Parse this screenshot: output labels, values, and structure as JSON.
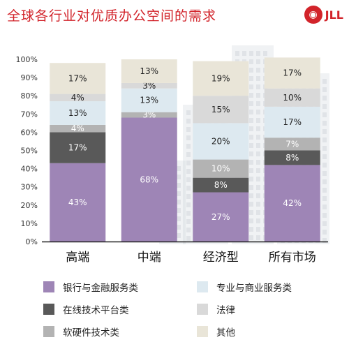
{
  "title": "全球各行业对优质办公空间的需求",
  "logo_text": "JLL",
  "colors": {
    "title": "#d2232a",
    "logo": "#d2232a",
    "banking": "#9e85b6",
    "platform": "#595959",
    "software": "#b3b3b3",
    "professional": "#dde9f0",
    "legal": "#d9d9d9",
    "other": "#e9e5d8",
    "label_light": "#ffffff",
    "label_dark": "#222222"
  },
  "chart_data": {
    "type": "bar",
    "stacked": true,
    "title": "全球各行业对优质办公空间的需求",
    "categories": [
      "高端",
      "中端",
      "经济型",
      "所有市场"
    ],
    "ylim": [
      0,
      100
    ],
    "yticks": [
      "0%",
      "10%",
      "20%",
      "30%",
      "40%",
      "50%",
      "60%",
      "70%",
      "80%",
      "90%",
      "100%"
    ],
    "ytick_values": [
      0,
      10,
      20,
      30,
      40,
      50,
      60,
      70,
      80,
      90,
      100
    ],
    "legend_position": "bottom",
    "series": [
      {
        "name": "银行与金融服务类",
        "color_key": "banking",
        "labels_light": true,
        "values": [
          43,
          68,
          27,
          42
        ],
        "labels": [
          "43%",
          "68%",
          "27%",
          "42%"
        ]
      },
      {
        "name": "在线技术平台类",
        "color_key": "platform",
        "labels_light": true,
        "values": [
          17,
          0,
          8,
          8
        ],
        "labels": [
          "17%",
          "",
          "8%",
          "8%"
        ]
      },
      {
        "name": "软硬件技术类",
        "color_key": "software",
        "labels_light": true,
        "values": [
          4,
          3,
          10,
          7
        ],
        "labels": [
          "4%",
          "3%",
          "10%",
          "7%"
        ]
      },
      {
        "name": "专业与商业服务类",
        "color_key": "professional",
        "labels_light": false,
        "values": [
          13,
          13,
          20,
          17
        ],
        "labels": [
          "13%",
          "13%",
          "20%",
          "17%"
        ]
      },
      {
        "name": "法律",
        "color_key": "legal",
        "labels_light": false,
        "values": [
          4,
          3,
          15,
          10
        ],
        "labels": [
          "4%",
          "3%",
          "15%",
          "10%"
        ]
      },
      {
        "name": "其他",
        "color_key": "other",
        "labels_light": false,
        "values": [
          17,
          13,
          19,
          17
        ],
        "labels": [
          "17%",
          "13%",
          "19%",
          "17%"
        ]
      }
    ]
  }
}
